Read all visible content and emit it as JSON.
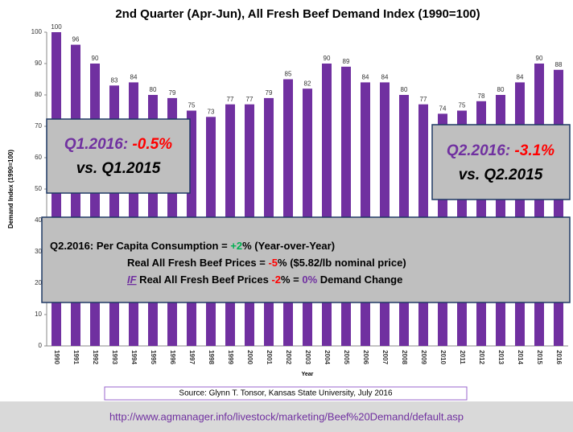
{
  "chart_data": {
    "type": "bar",
    "title": "2nd Quarter (Apr-Jun), All Fresh Beef Demand Index (1990=100)",
    "y_label": "Demand Index (1990=100)",
    "x_label": "Year",
    "categories": [
      "1990",
      "1991",
      "1992",
      "1993",
      "1994",
      "1995",
      "1996",
      "1997",
      "1998",
      "1999",
      "2000",
      "2001",
      "2002",
      "2003",
      "2004",
      "2005",
      "2006",
      "2007",
      "2008",
      "2009",
      "2010",
      "2011",
      "2012",
      "2013",
      "2014",
      "2015",
      "2016"
    ],
    "values": [
      100,
      96,
      90,
      83,
      84,
      80,
      79,
      75,
      73,
      77,
      77,
      79,
      85,
      82,
      90,
      89,
      84,
      84,
      80,
      77,
      74,
      75,
      78,
      80,
      84,
      90,
      88
    ],
    "color": "#7030a0",
    "ylim": [
      0,
      100
    ],
    "yticks": [
      0,
      10,
      20,
      30,
      40,
      50,
      60,
      70,
      80,
      90,
      100
    ],
    "grid": false
  },
  "source": "Source: Glynn T. Tonsor, Kansas State University, July 2016",
  "footer": "http://www.agmanager.info/livestock/marketing/Beef%20Demand/default.asp",
  "boxes": [
    {
      "lines": [
        [
          {
            "text": "Q1.2016: ",
            "color": "#7030a0"
          },
          {
            "text": "-0.5%",
            "color": "#ff0000"
          }
        ],
        [
          {
            "text": "vs. Q1.2015",
            "color": "#000000"
          }
        ]
      ]
    },
    {
      "lines": [
        [
          {
            "text": "Q2.2016: ",
            "color": "#7030a0"
          },
          {
            "text": "-3.1%",
            "color": "#ff0000"
          }
        ],
        [
          {
            "text": "vs. Q2.2015",
            "color": "#000000"
          }
        ]
      ]
    },
    {
      "lines": [
        [
          {
            "text": "Q2.2016: Per Capita Consumption = ",
            "color": "#000000"
          },
          {
            "text": "+2",
            "color": "#00b050"
          },
          {
            "text": "% (Year-over-Year)",
            "color": "#000000"
          }
        ],
        [
          {
            "text": "Real All Fresh Beef Prices = ",
            "color": "#000000"
          },
          {
            "text": "-5",
            "color": "#ff0000"
          },
          {
            "text": "% ($5.82/lb nominal price)",
            "color": "#000000"
          }
        ],
        [
          {
            "text": "IF",
            "color": "#7030a0"
          },
          {
            "text": " Real All Fresh Beef Prices ",
            "color": "#000000"
          },
          {
            "text": "-2",
            "color": "#ff0000"
          },
          {
            "text": "% = ",
            "color": "#000000"
          },
          {
            "text": "0%",
            "color": "#7030a0"
          },
          {
            "text": " Demand Change",
            "color": "#000000"
          }
        ]
      ]
    }
  ]
}
